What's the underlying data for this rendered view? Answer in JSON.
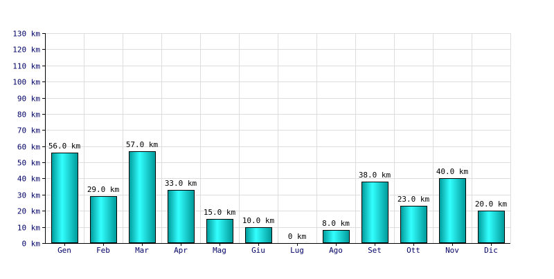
{
  "chart_data": {
    "type": "bar",
    "title": "",
    "xlabel": "",
    "ylabel": "",
    "unit": "km",
    "categories": [
      "Gen",
      "Feb",
      "Mar",
      "Apr",
      "Mag",
      "Giu",
      "Lug",
      "Ago",
      "Set",
      "Ott",
      "Nov",
      "Dic"
    ],
    "values": [
      56.0,
      29.0,
      57.0,
      33.0,
      15.0,
      10.0,
      0,
      8.0,
      38.0,
      23.0,
      40.0,
      20.0
    ],
    "value_labels": [
      "56.0 km",
      "29.0 km",
      "57.0 km",
      "33.0 km",
      "15.0 km",
      "10.0 km",
      "0 km",
      "8.0 km",
      "38.0 km",
      "23.0 km",
      "40.0 km",
      "20.0 km"
    ],
    "ylim": [
      0,
      130
    ],
    "y_ticks": [
      0,
      10,
      20,
      30,
      40,
      50,
      60,
      70,
      80,
      90,
      100,
      110,
      120,
      130
    ],
    "y_tick_labels": [
      "0 km",
      "10 km",
      "20 km",
      "30 km",
      "40 km",
      "50 km",
      "60 km",
      "70 km",
      "80 km",
      "90 km",
      "100 km",
      "110 km",
      "120 km",
      "130 km"
    ],
    "grid": true,
    "legend": "none",
    "colors": {
      "bar_light": "#33ffff",
      "bar_dark": "#009999",
      "bar_stroke": "#000000",
      "grid": "#dddddd",
      "axis": "#000000",
      "tick_label": "#000066",
      "value_label": "#000000",
      "background": "#ffffff"
    }
  }
}
